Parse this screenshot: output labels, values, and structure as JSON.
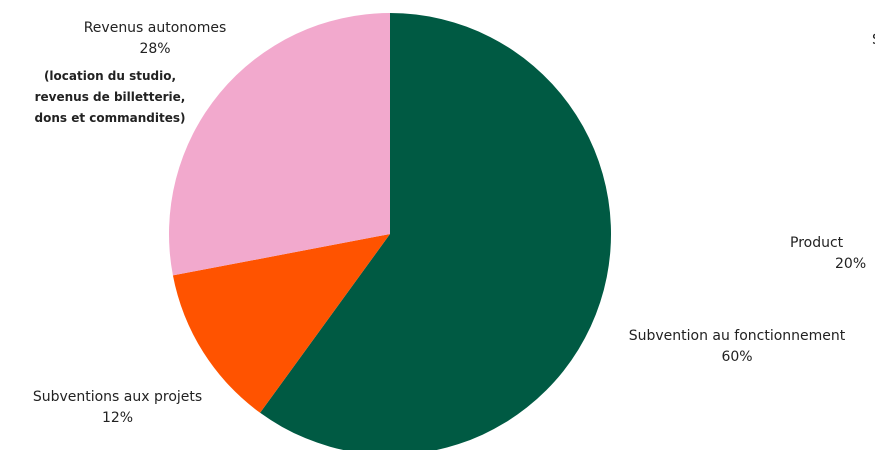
{
  "chart_data": {
    "type": "pie",
    "title": "",
    "slices": [
      {
        "label": "Subvention au fonctionnement",
        "value": 60,
        "value_label": "60%",
        "color": "#005a43"
      },
      {
        "label": "Subventions aux projets",
        "value": 12,
        "value_label": "12%",
        "color": "#ff5300"
      },
      {
        "label": "Revenus autonomes",
        "value": 28,
        "value_label": "28%",
        "color": "#f2a9cd",
        "note": [
          "(location du studio,",
          "revenus de billetterie,",
          "dons et commandites)"
        ]
      }
    ],
    "start_angle_deg": 0,
    "direction": "clockwise",
    "partial_labels": [
      {
        "label": "Product",
        "value_label": "20%"
      },
      {
        "label": "S"
      }
    ]
  }
}
